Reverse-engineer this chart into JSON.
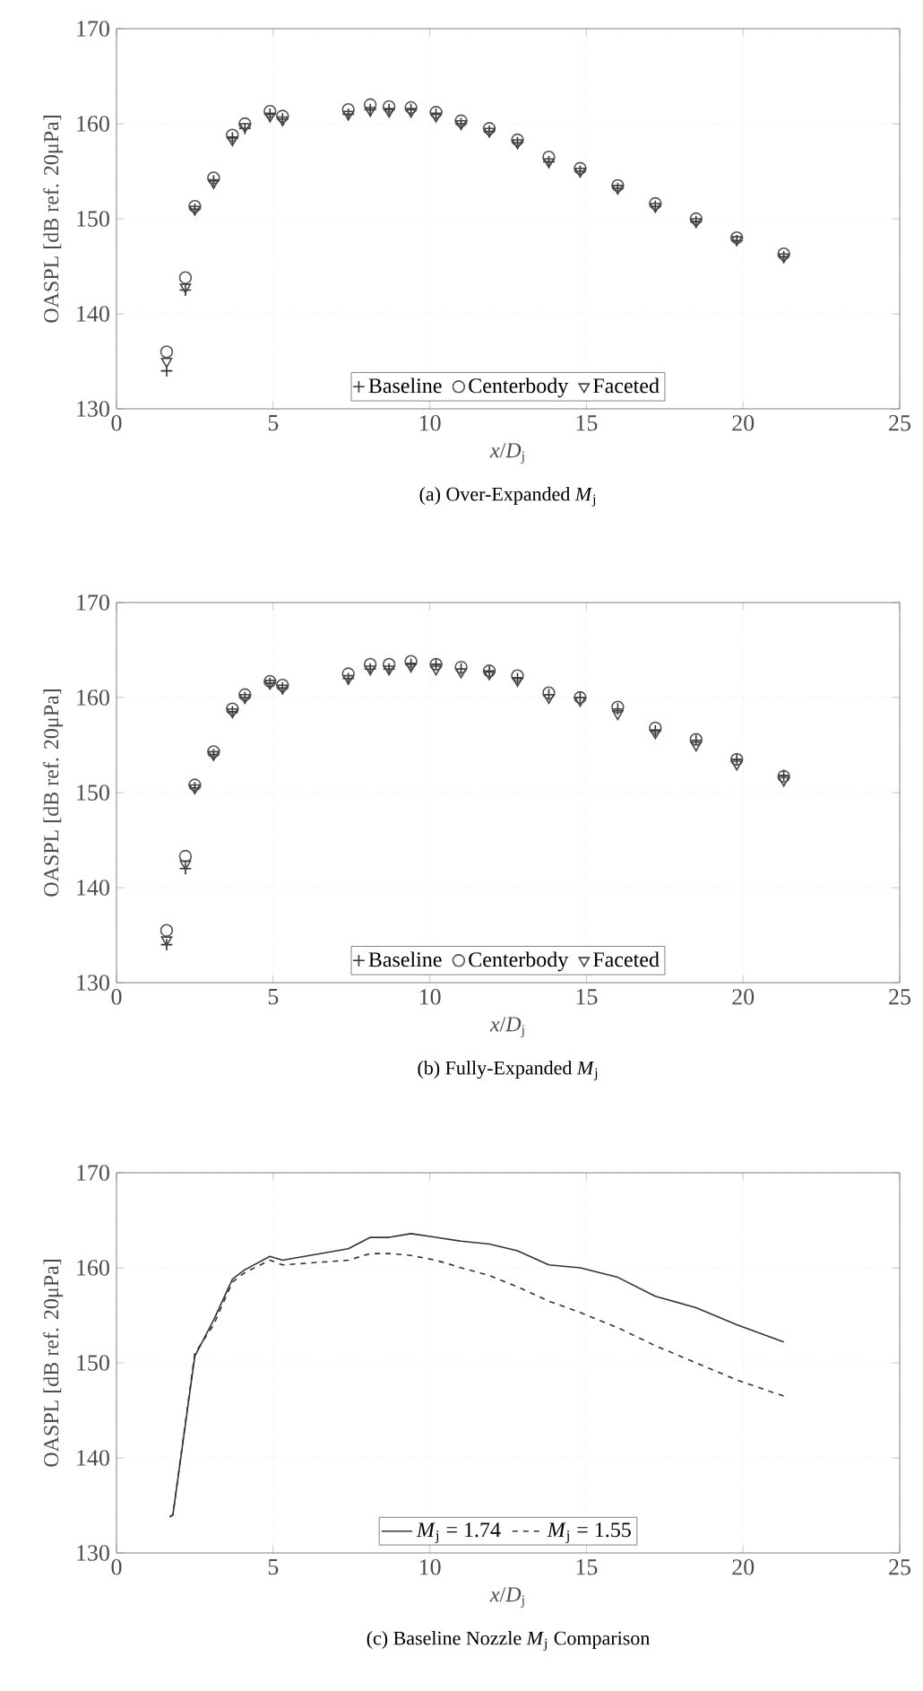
{
  "chart_data": [
    {
      "type": "scatter",
      "title": "(a) Over-Expanded *M*$_{j}$",
      "xlabel": "*x*/*D*$_{j}$",
      "ylabel": "OASPL [dB ref. 20μPa]",
      "xlim": [
        0,
        25
      ],
      "ylim": [
        130,
        170
      ],
      "xticks": [
        0,
        5,
        10,
        15,
        20,
        25
      ],
      "yticks": [
        130,
        140,
        150,
        160,
        170
      ],
      "grid": true,
      "legend": "bottom",
      "x": [
        1.6,
        2.2,
        2.5,
        3.1,
        3.7,
        4.1,
        4.9,
        5.3,
        7.4,
        8.1,
        8.7,
        9.4,
        10.2,
        11.0,
        11.9,
        12.8,
        13.8,
        14.8,
        16.0,
        17.2,
        18.5,
        19.8,
        21.3
      ],
      "series": [
        {
          "name": "Baseline",
          "color": "#333333",
          "marker": "cross",
          "values": [
            134,
            142.5,
            151,
            154,
            158.5,
            159.5,
            161,
            160.5,
            161,
            161.5,
            161.5,
            161.5,
            161,
            160,
            159.2,
            158,
            156,
            155,
            153.2,
            151.3,
            149.7,
            147.7,
            146
          ]
        },
        {
          "name": "Centerbody",
          "color": "#555555",
          "marker": "circle",
          "values": [
            136,
            143.8,
            151.3,
            154.3,
            158.8,
            160,
            161.3,
            160.8,
            161.5,
            162,
            161.8,
            161.7,
            161.2,
            160.3,
            159.5,
            158.3,
            156.5,
            155.3,
            153.5,
            151.6,
            150,
            148,
            146.3
          ]
        },
        {
          "name": "Faceted",
          "color": "#444444",
          "marker": "triangle",
          "values": [
            135,
            142.8,
            151,
            153.8,
            158.3,
            159.7,
            160.8,
            160.4,
            161,
            161.4,
            161.3,
            161.3,
            160.8,
            160,
            159.2,
            158,
            156,
            155,
            153.2,
            151.3,
            149.7,
            147.8,
            146
          ]
        }
      ]
    },
    {
      "type": "scatter",
      "title": "(b) Fully-Expanded *M*$_{j}$",
      "xlabel": "*x*/*D*$_{j}$",
      "ylabel": "OASPL [dB ref. 20μPa]",
      "xlim": [
        0,
        25
      ],
      "ylim": [
        130,
        170
      ],
      "xticks": [
        0,
        5,
        10,
        15,
        20,
        25
      ],
      "yticks": [
        130,
        140,
        150,
        160,
        170
      ],
      "grid": true,
      "legend": "bottom",
      "x": [
        1.6,
        2.2,
        2.5,
        3.1,
        3.7,
        4.1,
        4.9,
        5.3,
        7.4,
        8.1,
        8.7,
        9.4,
        10.2,
        11.0,
        11.9,
        12.8,
        13.8,
        14.8,
        16.0,
        17.2,
        18.5,
        19.8,
        21.3
      ],
      "series": [
        {
          "name": "Baseline",
          "color": "#333333",
          "marker": "cross",
          "values": [
            134,
            142,
            150.5,
            154,
            158.5,
            160,
            161.5,
            161,
            162,
            163,
            163,
            163.5,
            163.5,
            163,
            162.7,
            162,
            160.3,
            160,
            158.8,
            156.5,
            155.5,
            153.5,
            151.8
          ]
        },
        {
          "name": "Centerbody",
          "color": "#555555",
          "marker": "circle",
          "values": [
            135.5,
            143.3,
            150.8,
            154.3,
            158.8,
            160.3,
            161.7,
            161.3,
            162.5,
            163.5,
            163.5,
            163.8,
            163.5,
            163.2,
            162.8,
            162.3,
            160.5,
            160,
            159,
            156.8,
            155.6,
            153.5,
            151.7
          ]
        },
        {
          "name": "Faceted",
          "color": "#444444",
          "marker": "triangle",
          "values": [
            134.5,
            142.5,
            150.5,
            154,
            158.5,
            160,
            161.5,
            161,
            162,
            163,
            163,
            163.3,
            163,
            162.7,
            162.5,
            161.8,
            160,
            159.7,
            158.3,
            156.3,
            155,
            153,
            151.3
          ]
        }
      ]
    },
    {
      "type": "line",
      "title": "(c) Baseline Nozzle *M*$_{j}$ Comparison",
      "xlabel": "*x*/*D*$_{j}$",
      "ylabel": "OASPL [dB ref. 20μPa]",
      "xlim": [
        0,
        25
      ],
      "ylim": [
        130,
        170
      ],
      "xticks": [
        0,
        5,
        10,
        15,
        20,
        25
      ],
      "yticks": [
        130,
        140,
        150,
        160,
        170
      ],
      "grid": true,
      "legend": "bottom",
      "x": [
        1.7,
        1.8,
        2.5,
        3.1,
        3.7,
        4.1,
        4.9,
        5.3,
        7.4,
        8.1,
        8.7,
        9.4,
        10.2,
        11.0,
        11.9,
        12.8,
        13.8,
        14.8,
        16.0,
        17.2,
        18.5,
        19.8,
        21.3
      ],
      "series": [
        {
          "name": "*M*$_{j}$ = 1.74",
          "color": "#333333",
          "line_style": "solid",
          "values": [
            133.8,
            134,
            150.7,
            154.5,
            158.8,
            159.8,
            161.2,
            160.8,
            162,
            163.2,
            163.2,
            163.6,
            163.2,
            162.8,
            162.5,
            161.8,
            160.3,
            160,
            159,
            157,
            155.8,
            154,
            152.2
          ]
        },
        {
          "name": "*M*$_{j}$ = 1.55",
          "color": "#333333",
          "line_style": "dashed",
          "values": [
            133.8,
            134,
            151,
            154,
            158.5,
            159.5,
            160.8,
            160.3,
            160.8,
            161.5,
            161.5,
            161.3,
            160.8,
            160,
            159.2,
            158,
            156.5,
            155.3,
            153.7,
            151.8,
            150,
            148.2,
            146.5
          ]
        }
      ]
    }
  ]
}
